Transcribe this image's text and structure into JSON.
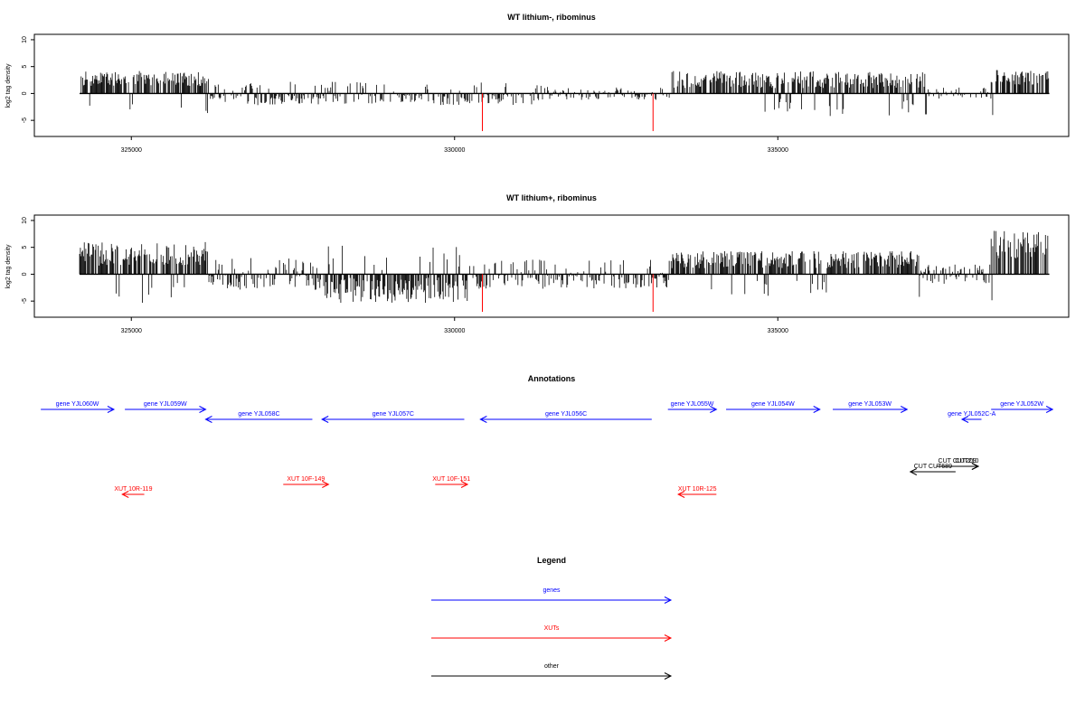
{
  "colors": {
    "gene": "#0000ff",
    "xut": "#ff0000",
    "other": "#000000",
    "signal": "#000000",
    "marker": "#ff0000",
    "frame": "#000000"
  },
  "chart_data": [
    {
      "type": "bar",
      "title": "WT lithium-, ribominus",
      "xlabel": "",
      "ylabel": "log2 tag density",
      "xlim": [
        323500,
        339500
      ],
      "ylim": [
        -8,
        11
      ],
      "xticks": [
        325000,
        330000,
        335000
      ],
      "xtick_labels": [
        "325000",
        "330000",
        "335000"
      ],
      "yticks": [
        -5,
        0,
        5,
        10
      ],
      "ytick_labels": [
        "-5",
        "0",
        "5",
        "10"
      ],
      "grid": false,
      "segments": [
        {
          "from": 324200,
          "to": 326200,
          "mean": 2.8,
          "amp": 1.4,
          "neg": 0.05
        },
        {
          "from": 326200,
          "to": 331400,
          "mean": -0.6,
          "amp": 1.6,
          "neg": 0.75
        },
        {
          "from": 331400,
          "to": 333350,
          "mean": -0.4,
          "amp": 0.8,
          "neg": 0.6
        },
        {
          "from": 333350,
          "to": 337300,
          "mean": 2.6,
          "amp": 1.6,
          "neg": 0.1
        },
        {
          "from": 337300,
          "to": 338300,
          "mean": 0.4,
          "amp": 0.8,
          "neg": 0.5
        },
        {
          "from": 338300,
          "to": 339200,
          "mean": 3.0,
          "amp": 1.4,
          "neg": 0.05
        }
      ],
      "red_markers": [
        {
          "x": 330430,
          "y": -7
        },
        {
          "x": 333070,
          "y": -7
        }
      ]
    },
    {
      "type": "bar",
      "title": "WT lithium+, ribominus",
      "xlabel": "",
      "ylabel": "log2 tag density",
      "xlim": [
        323500,
        339500
      ],
      "ylim": [
        -8,
        11
      ],
      "xticks": [
        325000,
        330000,
        335000
      ],
      "xtick_labels": [
        "325000",
        "330000",
        "335000"
      ],
      "yticks": [
        -5,
        0,
        5,
        10
      ],
      "ytick_labels": [
        "-5",
        "0",
        "5",
        "10"
      ],
      "grid": false,
      "segments": [
        {
          "from": 324200,
          "to": 326200,
          "mean": 3.8,
          "amp": 2.2,
          "neg": 0.08
        },
        {
          "from": 326200,
          "to": 328000,
          "mean": -1.2,
          "amp": 1.8,
          "neg": 0.65
        },
        {
          "from": 328000,
          "to": 330200,
          "mean": -3.0,
          "amp": 2.4,
          "neg": 0.92
        },
        {
          "from": 330200,
          "to": 333350,
          "mean": -0.9,
          "amp": 1.8,
          "neg": 0.72
        },
        {
          "from": 333350,
          "to": 337200,
          "mean": 2.7,
          "amp": 1.6,
          "neg": 0.08
        },
        {
          "from": 337200,
          "to": 338300,
          "mean": 0.8,
          "amp": 1.0,
          "neg": 0.4
        },
        {
          "from": 338300,
          "to": 339200,
          "mean": 5.5,
          "amp": 2.6,
          "neg": 0.02
        }
      ],
      "red_markers": [
        {
          "x": 330430,
          "y": -7
        },
        {
          "x": 333070,
          "y": -7
        }
      ]
    }
  ],
  "annotations": {
    "title": "Annotations",
    "features": [
      {
        "label": "gene YJL060W",
        "type": "gene",
        "strand": "+",
        "start": 323600,
        "end": 324730,
        "lane": 0
      },
      {
        "label": "gene YJL059W",
        "type": "gene",
        "strand": "+",
        "start": 324900,
        "end": 326150,
        "lane": 0
      },
      {
        "label": "gene YJL058C",
        "type": "gene",
        "strand": "-",
        "start": 326150,
        "end": 327800,
        "lane": 1
      },
      {
        "label": "gene YJL057C",
        "type": "gene",
        "strand": "-",
        "start": 327950,
        "end": 330150,
        "lane": 1
      },
      {
        "label": "gene YJL056C",
        "type": "gene",
        "strand": "-",
        "start": 330400,
        "end": 333050,
        "lane": 1
      },
      {
        "label": "gene YJL055W",
        "type": "gene",
        "strand": "+",
        "start": 333300,
        "end": 334050,
        "lane": 0
      },
      {
        "label": "gene YJL054W",
        "type": "gene",
        "strand": "+",
        "start": 334200,
        "end": 335650,
        "lane": 0
      },
      {
        "label": "gene YJL053W",
        "type": "gene",
        "strand": "+",
        "start": 335850,
        "end": 337000,
        "lane": 0
      },
      {
        "label": "gene YJL052C-A",
        "type": "gene",
        "strand": "-",
        "start": 337850,
        "end": 338150,
        "lane": 1
      },
      {
        "label": "gene YJL052W",
        "type": "gene",
        "strand": "+",
        "start": 338300,
        "end": 339250,
        "lane": 0
      },
      {
        "label": "CUT CUT209",
        "type": "other",
        "strand": "+",
        "start": 337450,
        "end": 338100,
        "lane": 2
      },
      {
        "label": "CUT210",
        "type": "other",
        "strand": "+",
        "start": 337750,
        "end": 338100,
        "lane": 2
      },
      {
        "label": "CUT CUT689",
        "type": "other",
        "strand": "-",
        "start": 337050,
        "end": 337750,
        "lane": 3
      },
      {
        "label": "XUT 10R-119",
        "type": "xut",
        "strand": "-",
        "start": 324860,
        "end": 325200,
        "lane": 5
      },
      {
        "label": "XUT 10F-149",
        "type": "xut",
        "strand": "+",
        "start": 327350,
        "end": 328050,
        "lane": 4
      },
      {
        "label": "XUT 10F-151",
        "type": "xut",
        "strand": "+",
        "start": 329700,
        "end": 330200,
        "lane": 4
      },
      {
        "label": "XUT 10R-125",
        "type": "xut",
        "strand": "-",
        "start": 333460,
        "end": 334050,
        "lane": 5
      }
    ]
  },
  "legend": {
    "title": "Legend",
    "items": [
      {
        "label": "genes",
        "type": "gene"
      },
      {
        "label": "XUTs",
        "type": "xut"
      },
      {
        "label": "other",
        "type": "other"
      }
    ]
  }
}
